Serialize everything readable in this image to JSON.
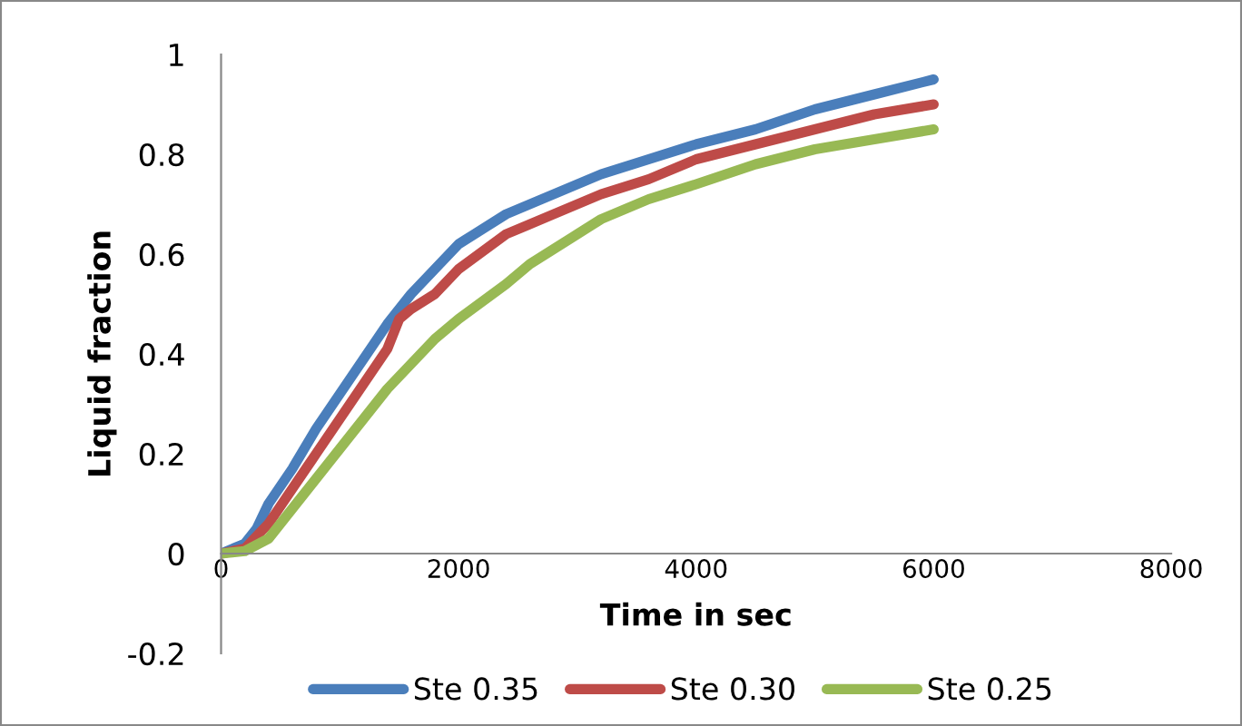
{
  "chart_data": {
    "type": "line",
    "xlabel": "Time in sec",
    "ylabel": "Liquid fraction",
    "xlim": [
      0,
      8000
    ],
    "xticks": [
      0,
      2000,
      4000,
      6000,
      8000
    ],
    "ylim": [
      -0.2,
      1
    ],
    "yticks": [
      -0.2,
      0,
      0.2,
      0.4,
      0.6,
      0.8,
      1
    ],
    "grid": false,
    "legend": "bottom",
    "marker": "none",
    "line_style": "solid",
    "series": [
      {
        "name": "Ste 0.35",
        "color": "#4a7ebb",
        "x": [
          0,
          200,
          300,
          400,
          600,
          800,
          1000,
          1200,
          1400,
          1600,
          1800,
          2000,
          2400,
          2800,
          3200,
          3600,
          4000,
          4500,
          5000,
          5500,
          6000
        ],
        "values": [
          0,
          0.02,
          0.05,
          0.1,
          0.17,
          0.25,
          0.32,
          0.39,
          0.46,
          0.52,
          0.57,
          0.62,
          0.68,
          0.72,
          0.76,
          0.79,
          0.82,
          0.85,
          0.89,
          0.92,
          0.95
        ]
      },
      {
        "name": "Ste 0.30",
        "color": "#be4b48",
        "x": [
          0,
          200,
          400,
          600,
          800,
          1000,
          1200,
          1400,
          1500,
          1600,
          1800,
          2000,
          2400,
          2800,
          3200,
          3600,
          4000,
          4500,
          5000,
          5500,
          6000
        ],
        "values": [
          0,
          0.01,
          0.06,
          0.13,
          0.2,
          0.27,
          0.34,
          0.41,
          0.47,
          0.49,
          0.52,
          0.57,
          0.64,
          0.68,
          0.72,
          0.75,
          0.79,
          0.82,
          0.85,
          0.88,
          0.9
        ]
      },
      {
        "name": "Ste 0.25",
        "color": "#98b954",
        "x": [
          0,
          200,
          400,
          600,
          800,
          1000,
          1200,
          1400,
          1600,
          1800,
          2000,
          2400,
          2600,
          2800,
          3000,
          3200,
          3600,
          4000,
          4500,
          5000,
          5500,
          6000
        ],
        "values": [
          0,
          0.005,
          0.03,
          0.09,
          0.15,
          0.21,
          0.27,
          0.33,
          0.38,
          0.43,
          0.47,
          0.54,
          0.58,
          0.61,
          0.64,
          0.67,
          0.71,
          0.74,
          0.78,
          0.81,
          0.83,
          0.85
        ]
      }
    ]
  }
}
